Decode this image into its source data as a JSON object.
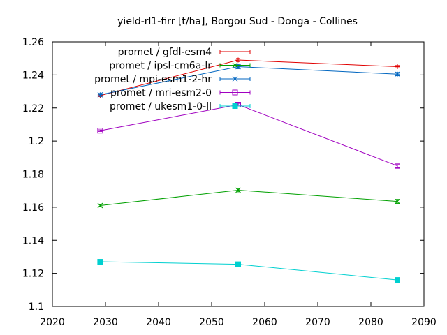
{
  "chart_data": {
    "type": "line",
    "title": "yield-rl1-firr [t/ha], Borgou Sud - Donga - Collines",
    "xlabel": "",
    "ylabel": "",
    "xlim": [
      2020,
      2090
    ],
    "ylim": [
      1.1,
      1.26
    ],
    "x_ticks": [
      "2020",
      "2030",
      "2040",
      "2050",
      "2060",
      "2070",
      "2080",
      "2090"
    ],
    "y_ticks": [
      "1.1",
      "1.12",
      "1.14",
      "1.16",
      "1.18",
      "1.2",
      "1.22",
      "1.24",
      "1.26"
    ],
    "grid": false,
    "legend_position": "top-left",
    "x": [
      2029,
      2055,
      2085
    ],
    "series": [
      {
        "name": "promet / gfdl-esm4",
        "color": "#e00000",
        "marker": "plus",
        "values": [
          1.2275,
          1.249,
          1.245
        ],
        "errors": [
          0.0006,
          0.0009,
          0.0007
        ]
      },
      {
        "name": "promet / ipsl-cm6a-lr",
        "color": "#00a000",
        "marker": "x",
        "values": [
          1.161,
          1.1703,
          1.1635
        ],
        "errors": [
          0.0006,
          0.001,
          0.0012
        ]
      },
      {
        "name": "promet / mpi-esm1-2-hr",
        "color": "#0066c0",
        "marker": "star",
        "values": [
          1.228,
          1.245,
          1.2405
        ],
        "errors": [
          0.0008,
          0.0012,
          0.001
        ]
      },
      {
        "name": "promet / mri-esm2-0",
        "color": "#a000c0",
        "marker": "square-open",
        "values": [
          1.2063,
          1.222,
          1.185
        ],
        "errors": [
          0.0005,
          0.0008,
          0.0008
        ]
      },
      {
        "name": "promet / ukesm1-0-ll",
        "color": "#00d0d0",
        "marker": "square-filled",
        "values": [
          1.127,
          1.1255,
          1.116
        ],
        "errors": [
          0.0005,
          0.0006,
          0.0006
        ]
      }
    ]
  }
}
